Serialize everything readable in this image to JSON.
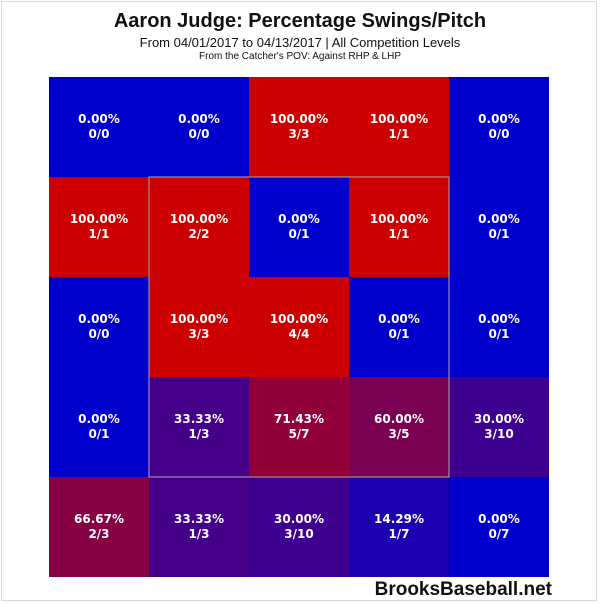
{
  "header": {
    "title": "Aaron Judge: Percentage Swings/Pitch",
    "subtitle": "From 04/01/2017 to 04/13/2017 | All Competition Levels",
    "subtitle2": "From the Catcher's POV:  Against RHP & LHP"
  },
  "watermark": "BrooksBaseball.net",
  "chart_data": {
    "type": "heatmap",
    "title": "Aaron Judge: Percentage Swings/Pitch",
    "rows": 5,
    "cols": 5,
    "strike_zone": "inner 3x3 cells outlined",
    "color_scale": {
      "low": "#0000cc",
      "high": "#cc0000"
    },
    "cells": [
      [
        {
          "pct": "0.00%",
          "frac": "0/0",
          "value": 0
        },
        {
          "pct": "0.00%",
          "frac": "0/0",
          "value": 0
        },
        {
          "pct": "100.00%",
          "frac": "3/3",
          "value": 100
        },
        {
          "pct": "100.00%",
          "frac": "1/1",
          "value": 100
        },
        {
          "pct": "0.00%",
          "frac": "0/0",
          "value": 0
        }
      ],
      [
        {
          "pct": "100.00%",
          "frac": "1/1",
          "value": 100
        },
        {
          "pct": "100.00%",
          "frac": "2/2",
          "value": 100
        },
        {
          "pct": "0.00%",
          "frac": "0/1",
          "value": 0
        },
        {
          "pct": "100.00%",
          "frac": "1/1",
          "value": 100
        },
        {
          "pct": "0.00%",
          "frac": "0/1",
          "value": 0
        }
      ],
      [
        {
          "pct": "0.00%",
          "frac": "0/0",
          "value": 0
        },
        {
          "pct": "100.00%",
          "frac": "3/3",
          "value": 100
        },
        {
          "pct": "100.00%",
          "frac": "4/4",
          "value": 100
        },
        {
          "pct": "0.00%",
          "frac": "0/1",
          "value": 0
        },
        {
          "pct": "0.00%",
          "frac": "0/1",
          "value": 0
        }
      ],
      [
        {
          "pct": "0.00%",
          "frac": "0/1",
          "value": 0
        },
        {
          "pct": "33.33%",
          "frac": "1/3",
          "value": 33.33
        },
        {
          "pct": "71.43%",
          "frac": "5/7",
          "value": 71.43
        },
        {
          "pct": "60.00%",
          "frac": "3/5",
          "value": 60
        },
        {
          "pct": "30.00%",
          "frac": "3/10",
          "value": 30
        }
      ],
      [
        {
          "pct": "66.67%",
          "frac": "2/3",
          "value": 66.67
        },
        {
          "pct": "33.33%",
          "frac": "1/3",
          "value": 33.33
        },
        {
          "pct": "30.00%",
          "frac": "3/10",
          "value": 30
        },
        {
          "pct": "14.29%",
          "frac": "1/7",
          "value": 14.29
        },
        {
          "pct": "0.00%",
          "frac": "0/7",
          "value": 0
        }
      ]
    ]
  }
}
